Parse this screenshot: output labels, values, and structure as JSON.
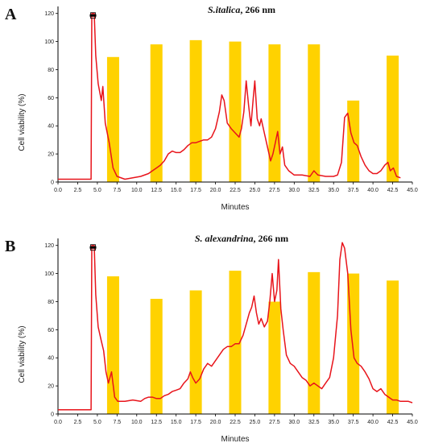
{
  "chart_data": [
    {
      "type": "line",
      "panel_label": "A",
      "title_italic": "S.italica",
      "title_rest": ", 266 nm",
      "xlabel": "Minutes",
      "ylabel": "Cell viability (%)",
      "xlim": [
        0,
        45
      ],
      "ylim": [
        0,
        125
      ],
      "x_ticks": [
        "0.0",
        "2.5",
        "5.0",
        "7.5",
        "10.0",
        "12.5",
        "15.0",
        "17.5",
        "20.0",
        "22.5",
        "25.0",
        "27.5",
        "30.0",
        "32.5",
        "35.0",
        "37.5",
        "40.0",
        "42.5",
        "45.0"
      ],
      "y_ticks": [
        "0",
        "20",
        "40",
        "60",
        "80",
        "100",
        "120"
      ],
      "colors": {
        "trace": "#e8141b",
        "bars": "#ffd200",
        "axis": "#000000"
      },
      "bars": [
        {
          "x": 7.0,
          "value": 89
        },
        {
          "x": 12.5,
          "value": 98
        },
        {
          "x": 17.5,
          "value": 101
        },
        {
          "x": 22.5,
          "value": 100
        },
        {
          "x": 27.5,
          "value": 98
        },
        {
          "x": 32.5,
          "value": 98
        },
        {
          "x": 37.5,
          "value": 58
        },
        {
          "x": 42.5,
          "value": 90
        }
      ],
      "series": [
        {
          "points": [
            [
              0,
              2
            ],
            [
              1,
              2
            ],
            [
              4.2,
              2
            ],
            [
              4.3,
              120
            ],
            [
              4.6,
              120
            ],
            [
              4.8,
              90
            ],
            [
              5.1,
              70
            ],
            [
              5.5,
              58
            ],
            [
              5.7,
              68
            ],
            [
              6.0,
              42
            ],
            [
              6.5,
              28
            ],
            [
              7.0,
              10
            ],
            [
              7.5,
              4
            ],
            [
              8.5,
              2
            ],
            [
              9.5,
              3
            ],
            [
              10.5,
              4
            ],
            [
              11.5,
              6
            ],
            [
              12.0,
              8
            ],
            [
              12.5,
              10
            ],
            [
              13.0,
              12
            ],
            [
              13.5,
              15
            ],
            [
              14.0,
              20
            ],
            [
              14.5,
              22
            ],
            [
              15.0,
              21
            ],
            [
              15.5,
              21
            ],
            [
              16.0,
              23
            ],
            [
              16.5,
              26
            ],
            [
              17.0,
              28
            ],
            [
              17.5,
              28
            ],
            [
              18.0,
              29
            ],
            [
              18.5,
              30
            ],
            [
              19.0,
              30
            ],
            [
              19.5,
              32
            ],
            [
              20.0,
              38
            ],
            [
              20.5,
              50
            ],
            [
              20.8,
              62
            ],
            [
              21.1,
              58
            ],
            [
              21.5,
              42
            ],
            [
              22.0,
              38
            ],
            [
              22.5,
              35
            ],
            [
              23.0,
              32
            ],
            [
              23.3,
              38
            ],
            [
              23.6,
              50
            ],
            [
              23.9,
              72
            ],
            [
              24.2,
              55
            ],
            [
              24.5,
              40
            ],
            [
              24.8,
              60
            ],
            [
              25.0,
              72
            ],
            [
              25.3,
              45
            ],
            [
              25.6,
              40
            ],
            [
              25.8,
              45
            ],
            [
              26.2,
              35
            ],
            [
              26.6,
              25
            ],
            [
              27.0,
              15
            ],
            [
              27.3,
              20
            ],
            [
              27.6,
              28
            ],
            [
              27.9,
              36
            ],
            [
              28.2,
              20
            ],
            [
              28.5,
              25
            ],
            [
              28.8,
              12
            ],
            [
              29.3,
              8
            ],
            [
              30.0,
              5
            ],
            [
              31.0,
              5
            ],
            [
              32.0,
              4
            ],
            [
              32.5,
              8
            ],
            [
              33.0,
              5
            ],
            [
              34.0,
              4
            ],
            [
              35.0,
              4
            ],
            [
              35.5,
              5
            ],
            [
              36.0,
              14
            ],
            [
              36.4,
              46
            ],
            [
              36.8,
              49
            ],
            [
              37.2,
              35
            ],
            [
              37.6,
              28
            ],
            [
              38.0,
              26
            ],
            [
              38.5,
              18
            ],
            [
              39.0,
              12
            ],
            [
              39.5,
              8
            ],
            [
              40.0,
              6
            ],
            [
              40.5,
              6
            ],
            [
              41.0,
              8
            ],
            [
              41.5,
              12
            ],
            [
              41.9,
              14
            ],
            [
              42.2,
              8
            ],
            [
              42.6,
              10
            ],
            [
              43.0,
              4
            ],
            [
              43.5,
              3
            ]
          ]
        }
      ]
    },
    {
      "type": "line",
      "panel_label": "B",
      "title_italic": "S. alexandrina",
      "title_rest": ", 266 nm",
      "xlabel": "Minutes",
      "ylabel": "Cell viability (%)",
      "xlim": [
        0,
        45
      ],
      "ylim": [
        0,
        125
      ],
      "x_ticks": [
        "0.0",
        "2.5",
        "5.0",
        "7.5",
        "10.0",
        "12.5",
        "15.0",
        "17.5",
        "20.0",
        "22.5",
        "25.0",
        "27.5",
        "30.0",
        "32.5",
        "35.0",
        "37.5",
        "40.0",
        "42.5",
        "45.0"
      ],
      "y_ticks": [
        "0",
        "20",
        "40",
        "60",
        "80",
        "100",
        "120"
      ],
      "colors": {
        "trace": "#e8141b",
        "bars": "#ffd200",
        "axis": "#000000"
      },
      "bars": [
        {
          "x": 7.0,
          "value": 98
        },
        {
          "x": 12.5,
          "value": 82
        },
        {
          "x": 17.5,
          "value": 88
        },
        {
          "x": 22.5,
          "value": 102
        },
        {
          "x": 27.5,
          "value": 80
        },
        {
          "x": 32.5,
          "value": 101
        },
        {
          "x": 37.5,
          "value": 100
        },
        {
          "x": 42.5,
          "value": 95
        }
      ],
      "series": [
        {
          "points": [
            [
              0,
              3
            ],
            [
              1,
              3
            ],
            [
              4.2,
              3
            ],
            [
              4.3,
              120
            ],
            [
              4.6,
              120
            ],
            [
              4.8,
              85
            ],
            [
              5.1,
              62
            ],
            [
              5.5,
              52
            ],
            [
              5.8,
              45
            ],
            [
              6.1,
              30
            ],
            [
              6.4,
              22
            ],
            [
              6.8,
              30
            ],
            [
              7.2,
              12
            ],
            [
              7.6,
              9
            ],
            [
              8.5,
              9
            ],
            [
              9.5,
              10
            ],
            [
              10.5,
              9
            ],
            [
              11.0,
              11
            ],
            [
              11.5,
              12
            ],
            [
              12.0,
              12
            ],
            [
              12.5,
              11
            ],
            [
              13.0,
              11
            ],
            [
              13.5,
              13
            ],
            [
              14.0,
              14
            ],
            [
              14.5,
              16
            ],
            [
              15.0,
              17
            ],
            [
              15.5,
              18
            ],
            [
              16.0,
              22
            ],
            [
              16.5,
              25
            ],
            [
              16.8,
              30
            ],
            [
              17.1,
              26
            ],
            [
              17.5,
              22
            ],
            [
              18.0,
              25
            ],
            [
              18.5,
              32
            ],
            [
              19.0,
              36
            ],
            [
              19.5,
              34
            ],
            [
              20.0,
              38
            ],
            [
              20.5,
              42
            ],
            [
              21.0,
              46
            ],
            [
              21.5,
              48
            ],
            [
              22.0,
              48
            ],
            [
              22.5,
              50
            ],
            [
              23.0,
              50
            ],
            [
              23.5,
              56
            ],
            [
              24.0,
              66
            ],
            [
              24.3,
              72
            ],
            [
              24.6,
              76
            ],
            [
              24.9,
              84
            ],
            [
              25.2,
              72
            ],
            [
              25.5,
              64
            ],
            [
              25.8,
              68
            ],
            [
              26.2,
              62
            ],
            [
              26.6,
              66
            ],
            [
              26.9,
              80
            ],
            [
              27.2,
              100
            ],
            [
              27.5,
              80
            ],
            [
              27.8,
              88
            ],
            [
              28.0,
              110
            ],
            [
              28.3,
              75
            ],
            [
              28.6,
              60
            ],
            [
              29.0,
              42
            ],
            [
              29.5,
              36
            ],
            [
              30.0,
              34
            ],
            [
              30.5,
              30
            ],
            [
              31.0,
              26
            ],
            [
              31.5,
              24
            ],
            [
              32.0,
              20
            ],
            [
              32.5,
              22
            ],
            [
              33.0,
              20
            ],
            [
              33.5,
              18
            ],
            [
              34.0,
              22
            ],
            [
              34.5,
              26
            ],
            [
              35.0,
              40
            ],
            [
              35.5,
              70
            ],
            [
              35.8,
              110
            ],
            [
              36.1,
              122
            ],
            [
              36.4,
              118
            ],
            [
              36.8,
              100
            ],
            [
              37.2,
              60
            ],
            [
              37.6,
              40
            ],
            [
              38.0,
              36
            ],
            [
              38.5,
              34
            ],
            [
              39.0,
              30
            ],
            [
              39.5,
              25
            ],
            [
              40.0,
              18
            ],
            [
              40.5,
              16
            ],
            [
              41.0,
              18
            ],
            [
              41.5,
              14
            ],
            [
              42.0,
              12
            ],
            [
              42.5,
              10
            ],
            [
              43.0,
              10
            ],
            [
              43.5,
              9
            ],
            [
              44.5,
              9
            ],
            [
              45.0,
              8
            ]
          ]
        }
      ]
    }
  ]
}
